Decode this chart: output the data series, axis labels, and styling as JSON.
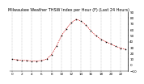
{
  "title": "Milwaukee Weather THSW Index per Hour (F) (Last 24 Hours)",
  "hours": [
    0,
    1,
    2,
    3,
    4,
    5,
    6,
    7,
    8,
    9,
    10,
    11,
    12,
    13,
    14,
    15,
    16,
    17,
    18,
    19,
    20,
    21,
    22,
    23
  ],
  "values": [
    10,
    9,
    8,
    8,
    7,
    7,
    8,
    10,
    18,
    32,
    50,
    62,
    72,
    78,
    75,
    68,
    58,
    50,
    44,
    40,
    36,
    32,
    29,
    27
  ],
  "line_color": "#cc0000",
  "marker_color": "#000000",
  "bg_color": "#ffffff",
  "grid_color": "#888888",
  "ylim_min": -10,
  "ylim_max": 90,
  "yticks_right": [
    90,
    80,
    70,
    60,
    50,
    40,
    30,
    20,
    10,
    0,
    -10
  ],
  "ylabel_fontsize": 3.0,
  "xlabel_fontsize": 3.0,
  "title_fontsize": 3.5,
  "vgrid_hours": [
    0,
    2,
    4,
    6,
    8,
    10,
    12,
    14,
    16,
    18,
    20,
    22
  ]
}
